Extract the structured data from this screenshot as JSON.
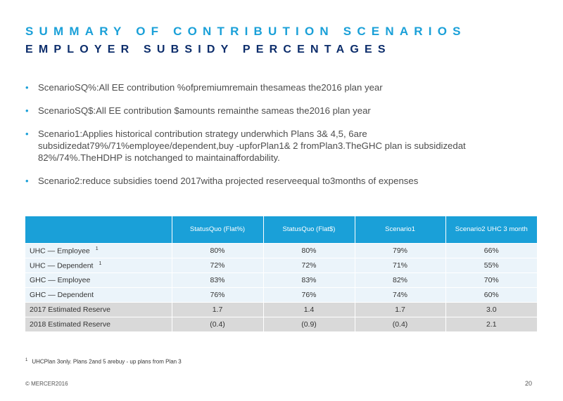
{
  "header": {
    "title_line1": "SUMMARY OF CONTRIBUTION SCENARIOS",
    "title_line2": "EMPLOYER SUBSIDY PERCENTAGES"
  },
  "bullets": [
    "ScenarioSQ%:All     EE  contribution     %ofpremiumremain       thesameas     the2016    plan   year",
    "ScenarioSQ$:All     EE  contribution     $amounts     remainthe     sameas    the2016    plan   year",
    "Scenario1:Applies     historical    contribution    strategy   underwhich    Plans  3&  4,5,   6are subsidizedat79%/71%employee/dependent,buy                        -upforPlan1&    2  fromPlan3.TheGHC plan   is  subsidizedat    82%/74%.TheHDHP     is  notchanged    to  maintainaffordability.",
    "Scenario2:reduce     subsidies    toend  2017witha    projected    reserveequal     to3months    of expenses"
  ],
  "table": {
    "headers": [
      "",
      "StatusQuo (Flat%)",
      "StatusQuo (Flat$)",
      "Scenario1",
      "Scenario2 UHC   3  month"
    ],
    "rows": [
      {
        "label": "UHC   — Employee",
        "sup": "1",
        "values": [
          "80%",
          "80%",
          "79%",
          "66%"
        ]
      },
      {
        "label": "UHC   — Dependent",
        "sup": "1",
        "values": [
          "72%",
          "72%",
          "71%",
          "55%"
        ]
      },
      {
        "label": "GHC   — Employee",
        "sup": "",
        "values": [
          "83%",
          "83%",
          "82%",
          "70%"
        ]
      },
      {
        "label": "GHC   — Dependent",
        "sup": "",
        "values": [
          "76%",
          "76%",
          "74%",
          "60%"
        ]
      },
      {
        "label": "2017   Estimated    Reserve",
        "sup": "",
        "values": [
          "1.7",
          "1.4",
          "1.7",
          "3.0"
        ]
      },
      {
        "label": "2018   Estimated    Reserve",
        "sup": "",
        "values": [
          "(0.4)",
          "(0.9)",
          "(0.4)",
          "2.1"
        ]
      }
    ]
  },
  "footnote": {
    "marker": "1",
    "text": "UHCPlan      3only.    Plans    2and   5  arebuy    - up  plans   from   Plan   3"
  },
  "footer": {
    "copyright": "©  MERCER2016",
    "page": "20"
  }
}
